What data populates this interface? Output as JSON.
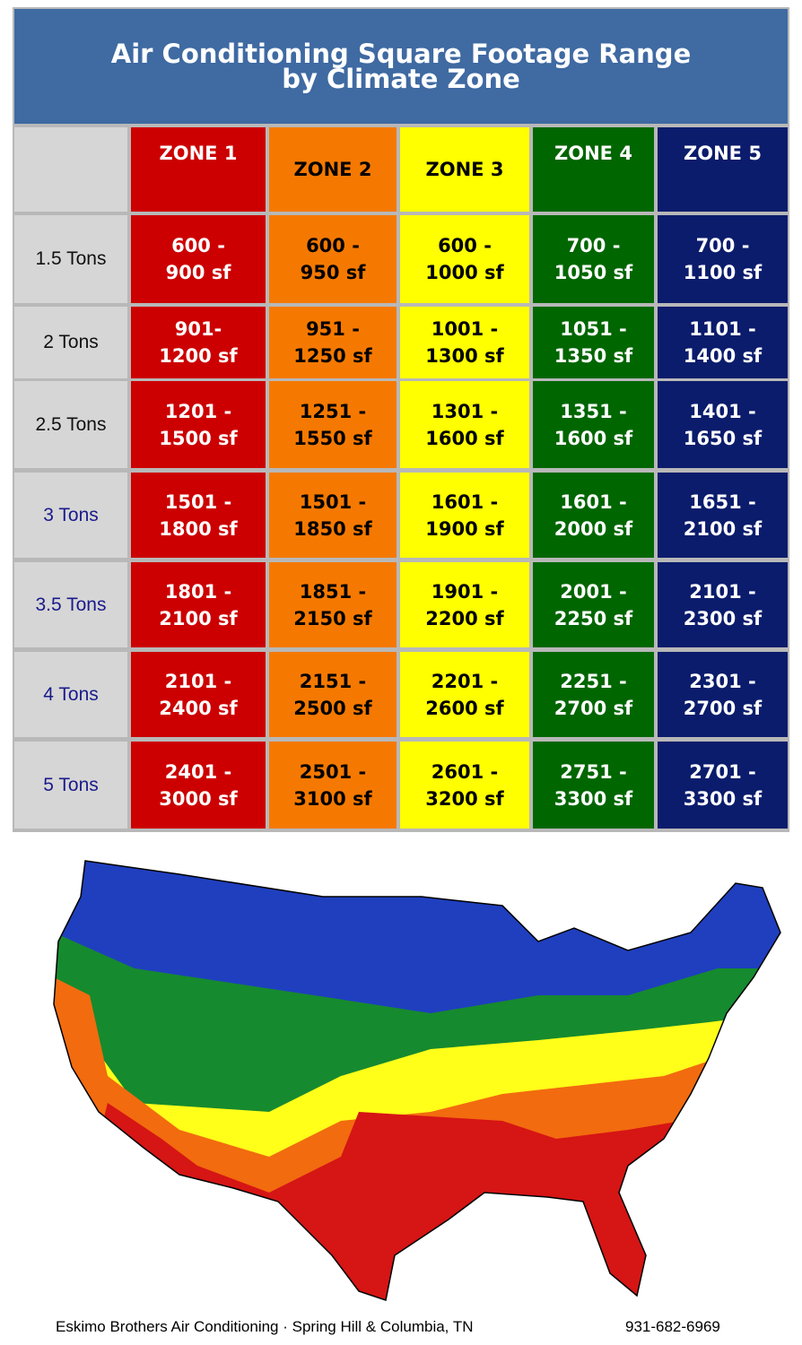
{
  "header": {
    "title": [
      "Air Conditioning Square Footage Range",
      "by Climate Zone"
    ]
  },
  "table": {
    "columns": [
      "ZONE 1",
      "ZONE 2",
      "ZONE 3",
      "ZONE 4",
      "ZONE 5"
    ],
    "rows": [
      [
        "1.5 Tons",
        "600 - 900 sf",
        "600 - 950 sf",
        "600 - 1000 sf",
        "700 - 1050 sf",
        "700 - 1100 sf"
      ],
      [
        "2 Tons",
        "901-1200 sf",
        "951 - 1250 sf",
        "1001 - 1300 sf",
        "1051 - 1350 sf",
        "1101 - 1400 sf"
      ],
      [
        "2.5 Tons",
        "1201 - 1500 sf",
        "1251 - 1550 sf",
        "1301 - 1600 sf",
        "1351 - 1600 sf",
        "1401 - 1650 sf"
      ],
      [
        "3 Tons",
        "1501 - 1800 sf",
        "1501 - 1850 sf",
        "1601 - 1900 sf",
        "1601 - 2000 sf",
        "1651 - 2100 sf"
      ],
      [
        "3.5 Tons",
        "1801 - 2100 sf",
        "1851 - 2150 sf",
        "1901 - 2200 sf",
        "2001 - 2250 sf",
        "2101 - 2300 sf"
      ],
      [
        "4 Tons",
        "2101 - 2400 sf",
        "2151 - 2500 sf",
        "2201 - 2600 sf",
        "2251 - 2700 sf",
        "2301 - 2700 sf"
      ],
      [
        "5 Tons",
        "2401 - 3000 sf",
        "2501 - 3100 sf",
        "2601 - 3200 sf",
        "2751 - 3300 sf",
        "2701 - 3300 sf"
      ]
    ]
  },
  "footer": {
    "company": "Eskimo Brothers Air Conditioning · Spring Hill & Columbia, TN",
    "phone": "931-682-6969"
  }
}
